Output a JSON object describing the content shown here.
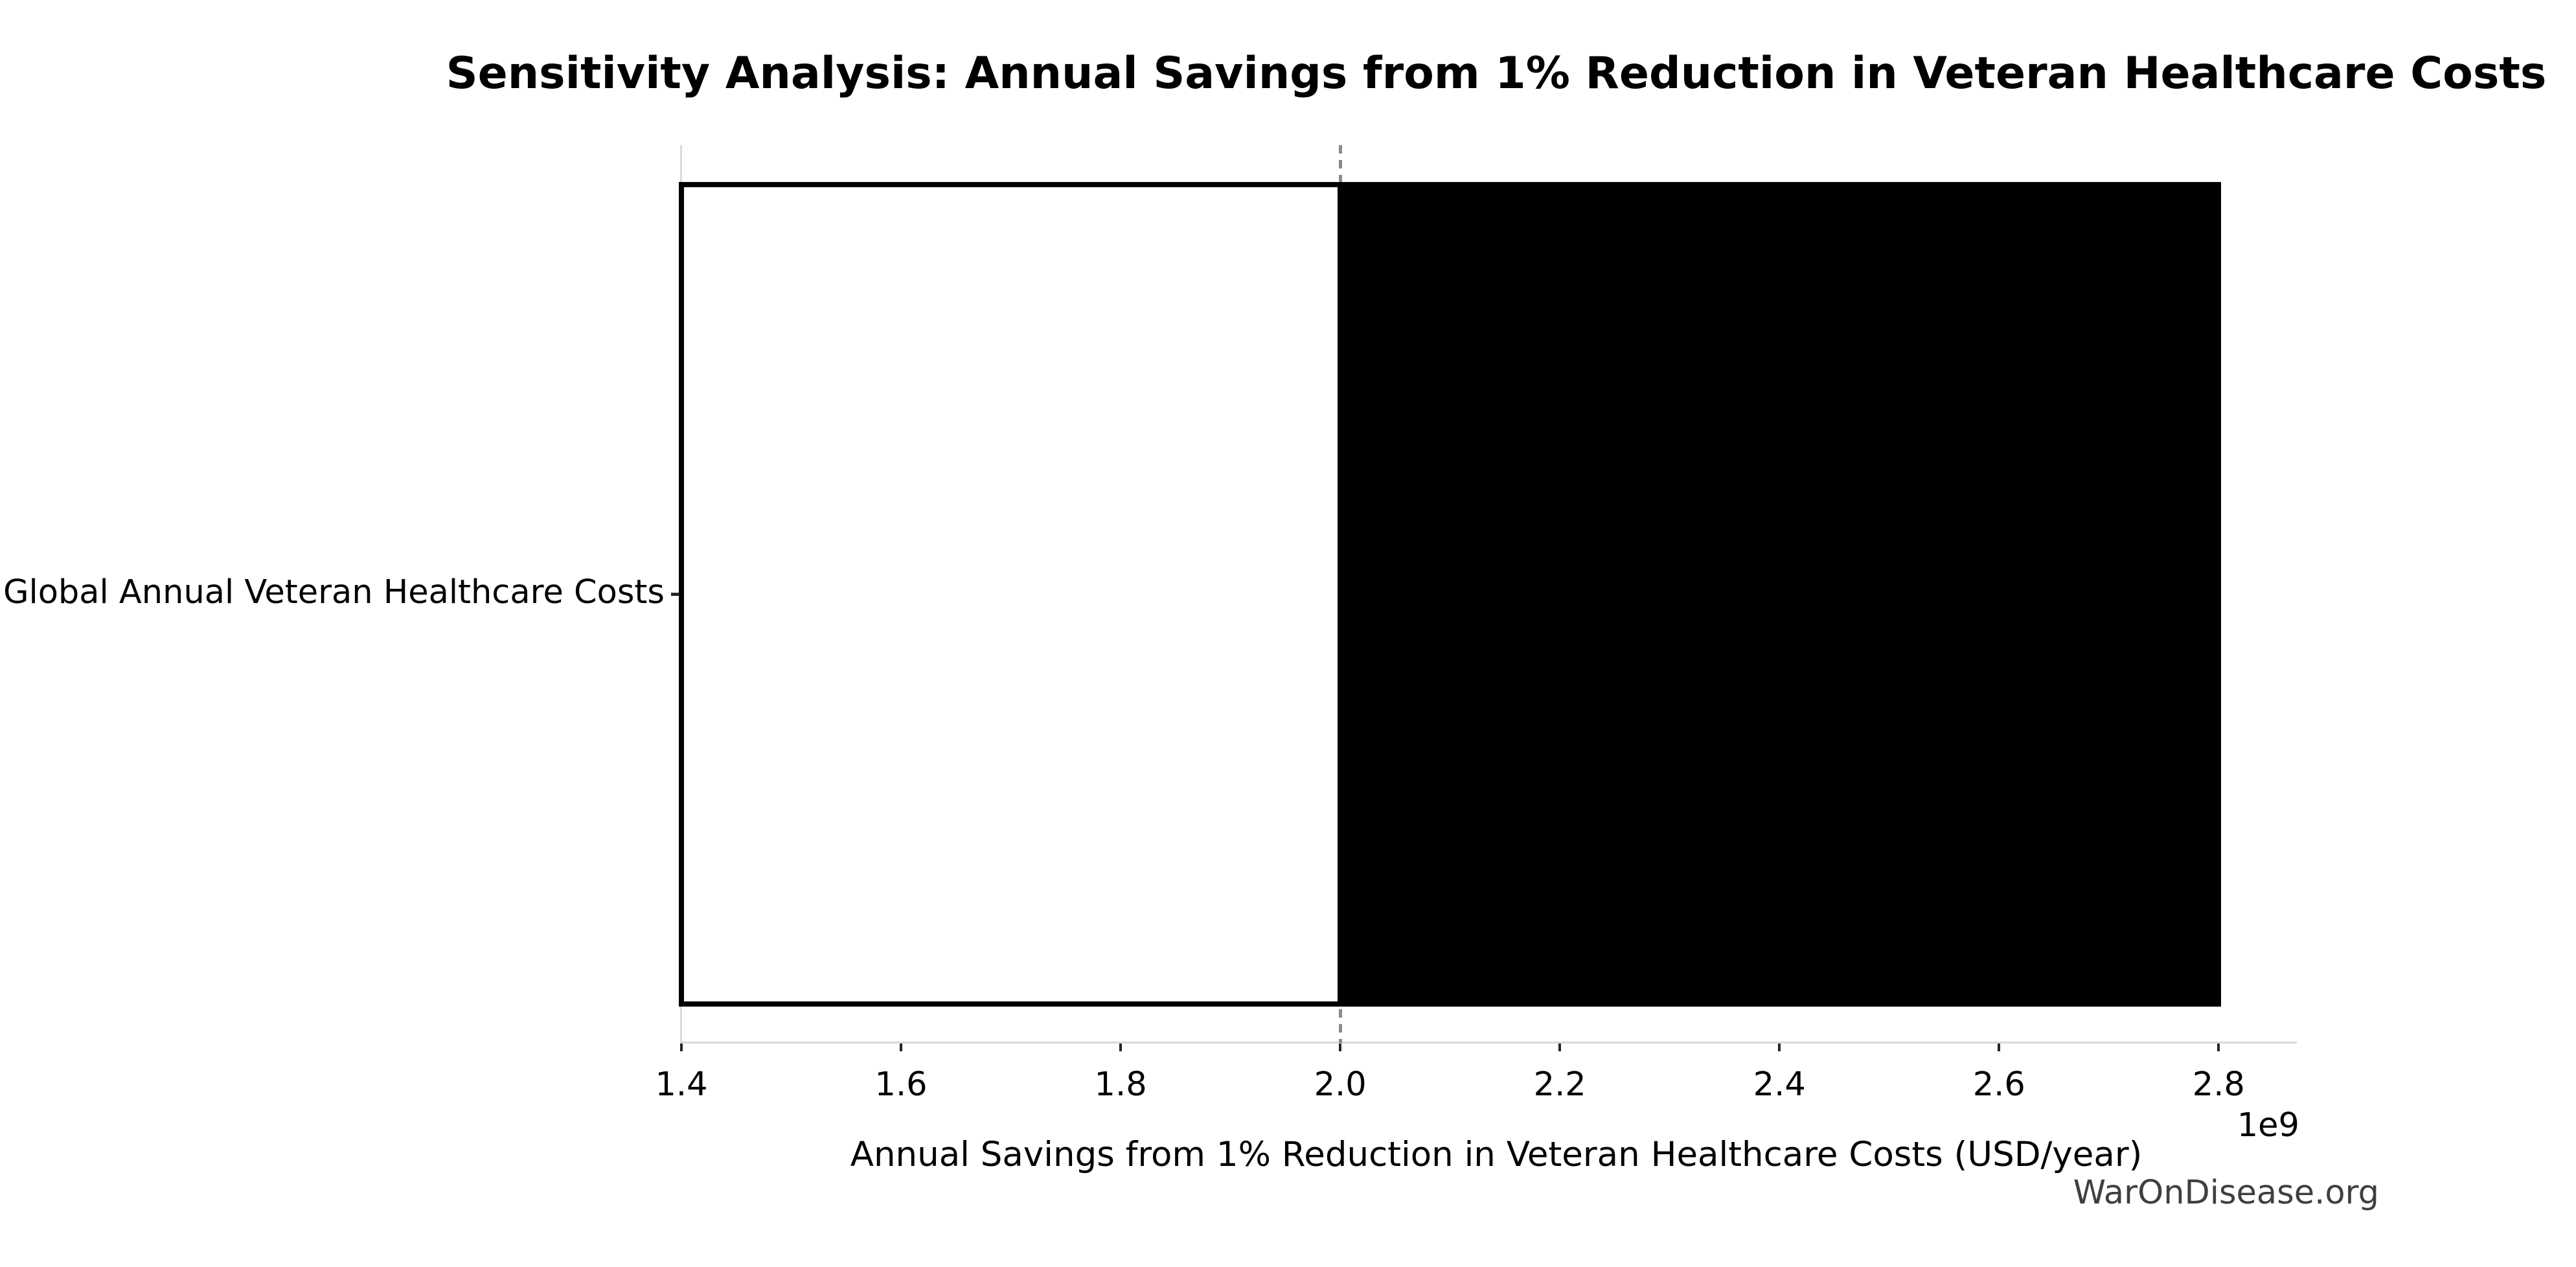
{
  "chart_data": {
    "type": "bar",
    "orientation": "horizontal",
    "title": "Sensitivity Analysis: Annual Savings from 1% Reduction in Veteran Healthcare Costs",
    "xlabel": "Annual Savings from 1% Reduction in Veteran Healthcare Costs (USD/year)",
    "ylabel": "",
    "categories": [
      "Global Annual Veteran Healthcare Costs"
    ],
    "bars": [
      {
        "category": "Global Annual Veteran Healthcare Costs",
        "low": 1400000000,
        "base": 2000000000,
        "high": 2800000000,
        "low_segment_fill": "#ffffff",
        "high_segment_fill": "#000000",
        "edge_color": "#000000"
      }
    ],
    "baseline": {
      "value": 2000000000,
      "style": "dashed",
      "color": "#8a8a8a"
    },
    "x_ticks": [
      1400000000,
      1600000000,
      1800000000,
      2000000000,
      2200000000,
      2400000000,
      2600000000,
      2800000000
    ],
    "x_tick_labels": [
      "1.4",
      "1.6",
      "1.8",
      "2.0",
      "2.2",
      "2.4",
      "2.6",
      "2.8"
    ],
    "x_offset_label": "1e9",
    "xlim": [
      1400000000,
      2870000000
    ],
    "grid": false,
    "legend": null,
    "spine_color": "#d9d9d9",
    "tick_color": "#262626",
    "text_color": "#000000",
    "watermark": "WarOnDisease.org"
  }
}
